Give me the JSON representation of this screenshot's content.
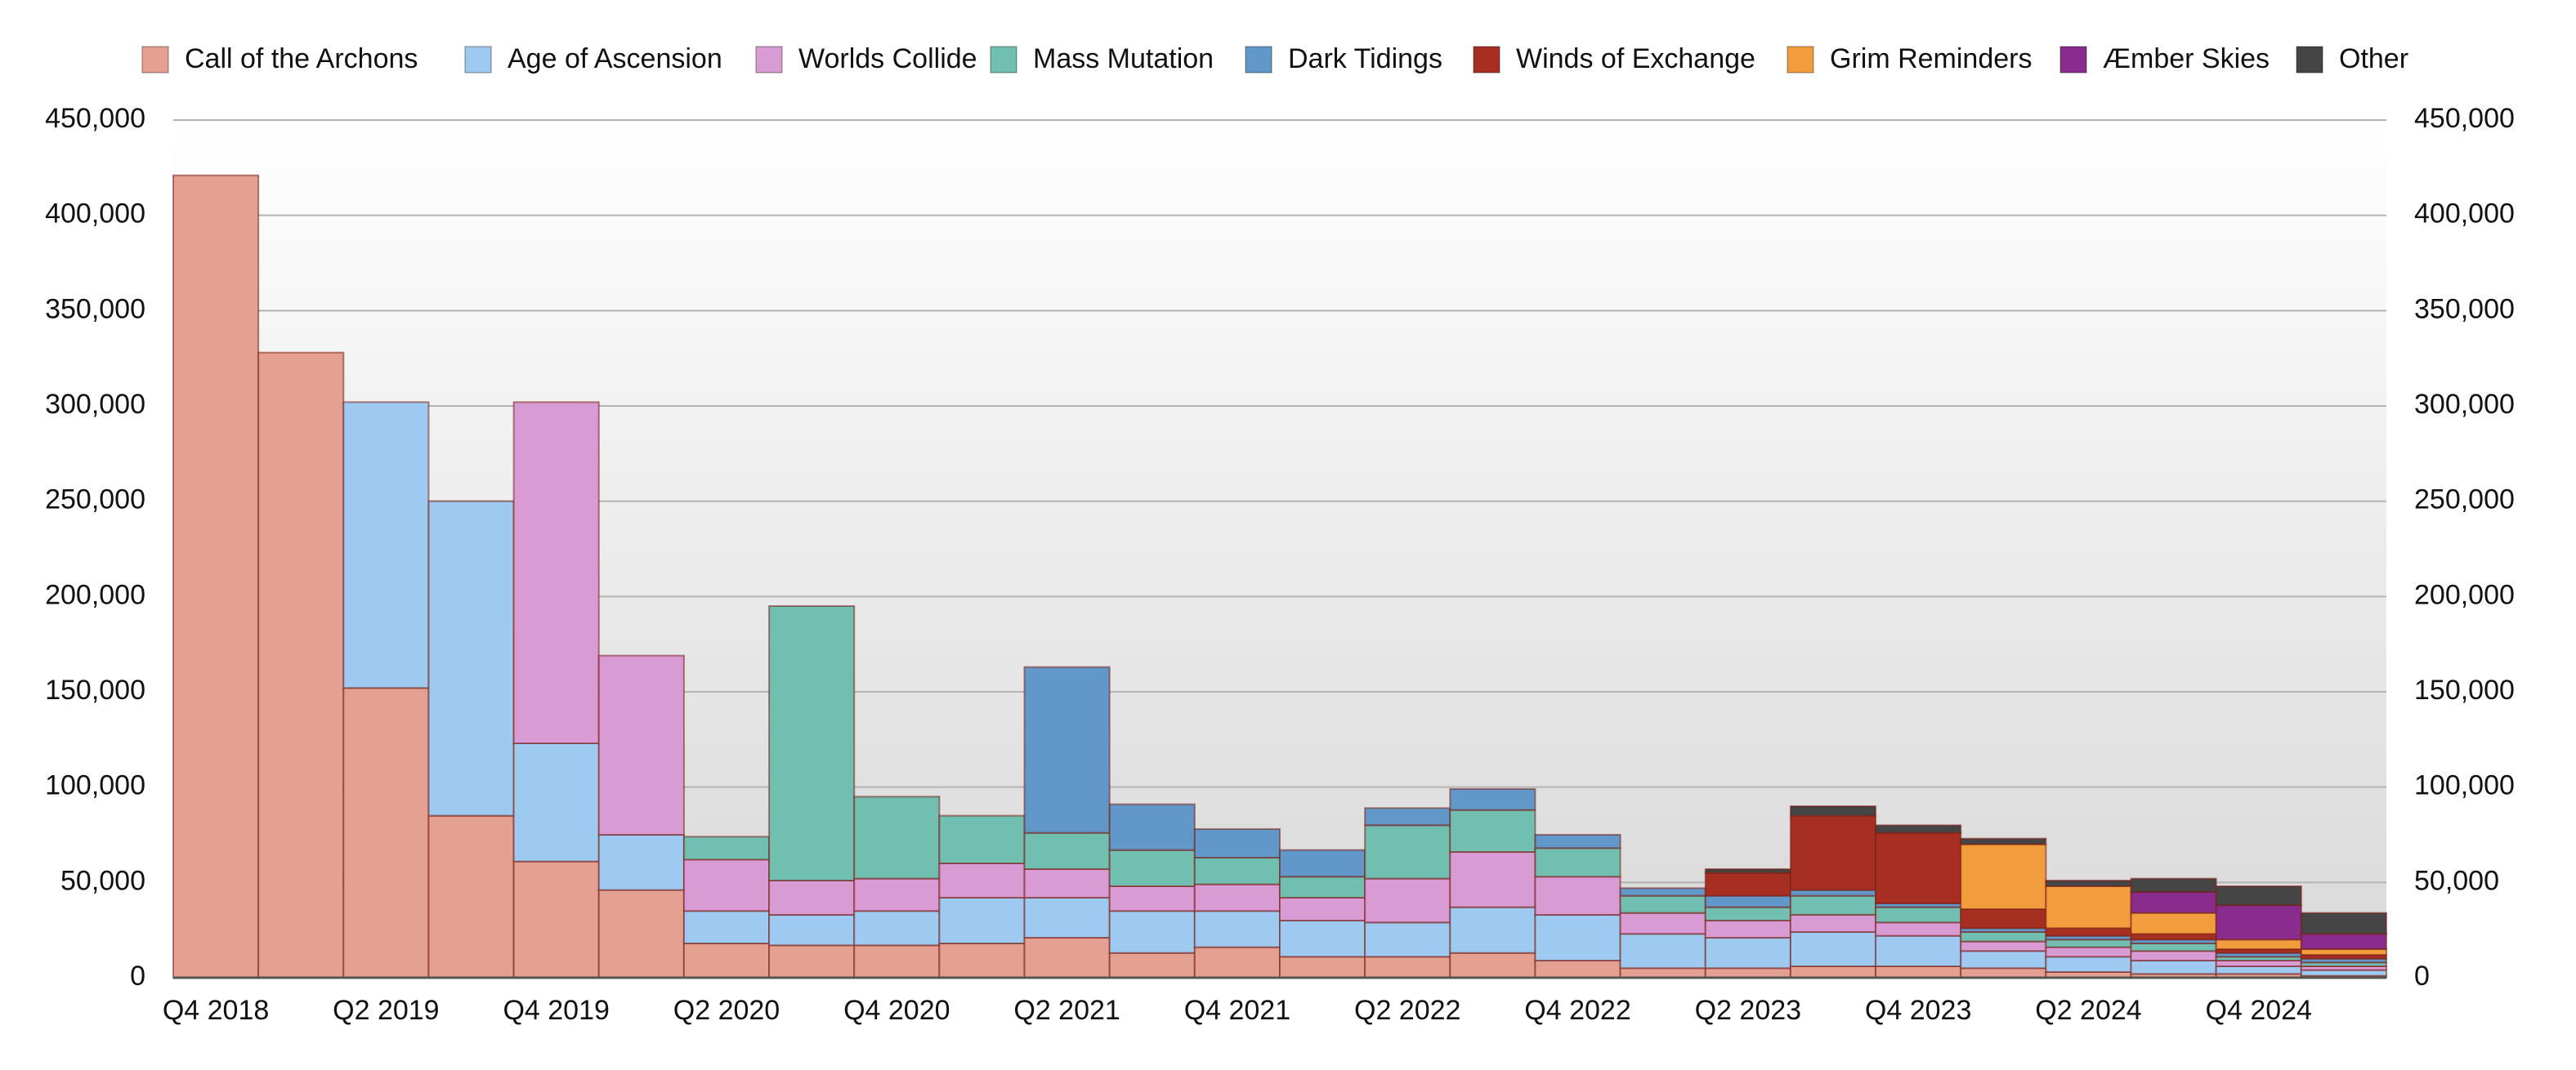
{
  "chart_data": {
    "type": "stacked_bar",
    "categories": [
      "Q4 2018",
      null,
      "Q2 2019",
      null,
      "Q4 2019",
      null,
      "Q2 2020",
      null,
      "Q4 2020",
      null,
      "Q2 2021",
      null,
      "Q4 2021",
      null,
      "Q2 2022",
      null,
      "Q4 2022",
      null,
      "Q2 2023",
      null,
      "Q4 2023",
      null,
      "Q2 2024",
      null,
      "Q4 2024",
      null
    ],
    "series": [
      {
        "name": "Call of the Archons",
        "color": "#e4a191",
        "values": [
          421000,
          328000,
          152000,
          85000,
          61000,
          46000,
          18000,
          17000,
          17000,
          18000,
          21000,
          13000,
          16000,
          11000,
          11000,
          13000,
          9000,
          5000,
          5000,
          6000,
          6000,
          5000,
          3000,
          2000,
          2000,
          1000
        ]
      },
      {
        "name": "Age of Ascension",
        "color": "#9ecaf1",
        "values": [
          null,
          null,
          150000,
          165000,
          62000,
          29000,
          17000,
          16000,
          18000,
          24000,
          21000,
          22000,
          19000,
          19000,
          18000,
          24000,
          24000,
          18000,
          16000,
          18000,
          16000,
          9000,
          8000,
          7000,
          4000,
          3000
        ]
      },
      {
        "name": "Worlds Collide",
        "color": "#d89bd4",
        "values": [
          null,
          null,
          null,
          null,
          179000,
          94000,
          27000,
          18000,
          17000,
          18000,
          15000,
          13000,
          14000,
          12000,
          23000,
          29000,
          20000,
          11000,
          9000,
          9000,
          7000,
          5000,
          5000,
          5000,
          3000,
          2000
        ]
      },
      {
        "name": "Mass Mutation",
        "color": "#71bfb1",
        "values": [
          null,
          null,
          null,
          null,
          null,
          null,
          12000,
          144000,
          43000,
          25000,
          19000,
          19000,
          14000,
          11000,
          28000,
          22000,
          15000,
          9000,
          7000,
          10000,
          8000,
          5000,
          4000,
          4000,
          2000,
          2000
        ]
      },
      {
        "name": "Dark Tidings",
        "color": "#6198c9",
        "values": [
          null,
          null,
          null,
          null,
          null,
          null,
          null,
          null,
          null,
          null,
          87000,
          24000,
          15000,
          14000,
          9000,
          11000,
          7000,
          4000,
          6000,
          3000,
          2000,
          2000,
          2000,
          2000,
          2000,
          2000
        ]
      },
      {
        "name": "Winds of Exchange",
        "color": "#a62f22",
        "values": [
          null,
          null,
          null,
          null,
          null,
          null,
          null,
          null,
          null,
          null,
          null,
          null,
          null,
          null,
          null,
          null,
          null,
          null,
          12000,
          39000,
          37000,
          10000,
          4000,
          3000,
          2000,
          2000
        ]
      },
      {
        "name": "Grim Reminders",
        "color": "#f29d3d",
        "values": [
          null,
          null,
          null,
          null,
          null,
          null,
          null,
          null,
          null,
          null,
          null,
          null,
          null,
          null,
          null,
          null,
          null,
          null,
          null,
          null,
          null,
          34000,
          22000,
          11000,
          5000,
          3000
        ]
      },
      {
        "name": "Æmber Skies",
        "color": "#8a2c8d",
        "values": [
          null,
          null,
          null,
          null,
          null,
          null,
          null,
          null,
          null,
          null,
          null,
          null,
          null,
          null,
          null,
          null,
          null,
          null,
          null,
          null,
          null,
          null,
          null,
          11000,
          18000,
          8000
        ]
      },
      {
        "name": "Other",
        "color": "#454545",
        "values": [
          null,
          null,
          null,
          null,
          null,
          null,
          null,
          null,
          null,
          null,
          null,
          null,
          null,
          null,
          null,
          null,
          null,
          null,
          2000,
          5000,
          4000,
          3000,
          3000,
          7000,
          10000,
          11000
        ]
      }
    ],
    "ylim": [
      0,
      450000
    ],
    "yticks": [
      0,
      {
        "value": 50000,
        "label": "50,000"
      },
      {
        "value": 100000,
        "label": "100,000"
      },
      {
        "value": 150000,
        "label": "150,000"
      },
      {
        "value": 200000,
        "label": "200,000"
      },
      {
        "value": 250000,
        "label": "250,000"
      },
      {
        "value": 300000,
        "label": "300,000"
      },
      {
        "value": 350000,
        "label": "350,000"
      },
      {
        "value": 400000,
        "label": "400,000"
      },
      {
        "value": 450000,
        "label": "450,000"
      }
    ],
    "grid": true,
    "legend": "top"
  }
}
